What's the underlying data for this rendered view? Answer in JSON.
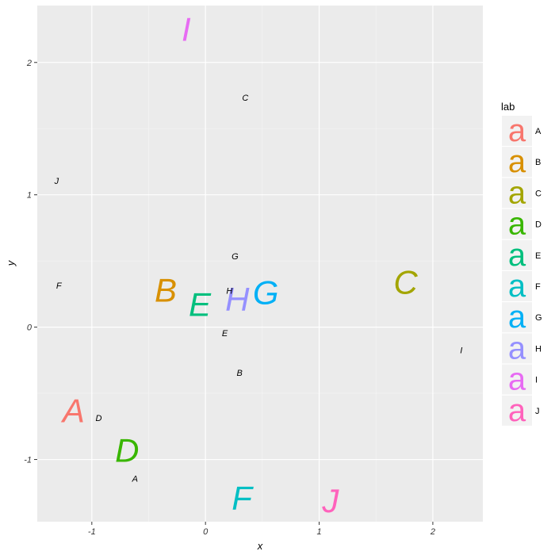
{
  "chart_data": {
    "type": "scatter",
    "title": "",
    "xlabel": "x",
    "ylabel": "y",
    "xlim": [
      -1.48,
      2.44
    ],
    "ylim": [
      -1.47,
      2.43
    ],
    "grid": true,
    "x_ticks": [
      {
        "value": -1,
        "label": "-1"
      },
      {
        "value": 0,
        "label": "0"
      },
      {
        "value": 1,
        "label": "1"
      },
      {
        "value": 2,
        "label": "2"
      }
    ],
    "y_ticks": [
      {
        "value": -1,
        "label": "-1"
      },
      {
        "value": 0,
        "label": "0"
      },
      {
        "value": 1,
        "label": "1"
      },
      {
        "value": 2,
        "label": "2"
      }
    ],
    "legend": {
      "title": "lab",
      "placement": "right",
      "key_glyph": "a",
      "entries": [
        {
          "label": "A",
          "color": "#F8766D"
        },
        {
          "label": "B",
          "color": "#D89000"
        },
        {
          "label": "C",
          "color": "#A3A500"
        },
        {
          "label": "D",
          "color": "#39B600"
        },
        {
          "label": "E",
          "color": "#00BF7D"
        },
        {
          "label": "F",
          "color": "#00BFC4"
        },
        {
          "label": "G",
          "color": "#00B0F6"
        },
        {
          "label": "H",
          "color": "#9590FF"
        },
        {
          "label": "I",
          "color": "#E76BF3"
        },
        {
          "label": "J",
          "color": "#FF62BC"
        }
      ]
    },
    "series": [
      {
        "style": "large colored letters",
        "points": [
          {
            "label": "A",
            "x": -1.16,
            "y": -0.63,
            "color": "#F8766D"
          },
          {
            "label": "B",
            "x": -0.35,
            "y": 0.28,
            "color": "#D89000"
          },
          {
            "label": "C",
            "x": 1.76,
            "y": 0.34,
            "color": "#A3A500"
          },
          {
            "label": "D",
            "x": -0.69,
            "y": -0.93,
            "color": "#39B600"
          },
          {
            "label": "E",
            "x": -0.05,
            "y": 0.17,
            "color": "#00BF7D"
          },
          {
            "label": "F",
            "x": 0.32,
            "y": -1.29,
            "color": "#00BFC4"
          },
          {
            "label": "G",
            "x": 0.53,
            "y": 0.26,
            "color": "#00B0F6"
          },
          {
            "label": "H",
            "x": 0.28,
            "y": 0.21,
            "color": "#9590FF"
          },
          {
            "label": "I",
            "x": -0.17,
            "y": 2.25,
            "color": "#E76BF3"
          },
          {
            "label": "J",
            "x": 1.1,
            "y": -1.31,
            "color": "#FF62BC"
          }
        ]
      },
      {
        "style": "small black letters",
        "points": [
          {
            "label": "A",
            "x": -0.62,
            "y": -1.15
          },
          {
            "label": "B",
            "x": 0.3,
            "y": -0.35
          },
          {
            "label": "C",
            "x": 0.35,
            "y": 1.73
          },
          {
            "label": "D",
            "x": -0.94,
            "y": -0.69
          },
          {
            "label": "E",
            "x": 0.17,
            "y": -0.05
          },
          {
            "label": "F",
            "x": -1.29,
            "y": 0.31
          },
          {
            "label": "G",
            "x": 0.26,
            "y": 0.53
          },
          {
            "label": "H",
            "x": 0.21,
            "y": 0.27
          },
          {
            "label": "I",
            "x": 2.25,
            "y": -0.18
          },
          {
            "label": "J",
            "x": -1.31,
            "y": 1.1
          }
        ]
      }
    ]
  }
}
